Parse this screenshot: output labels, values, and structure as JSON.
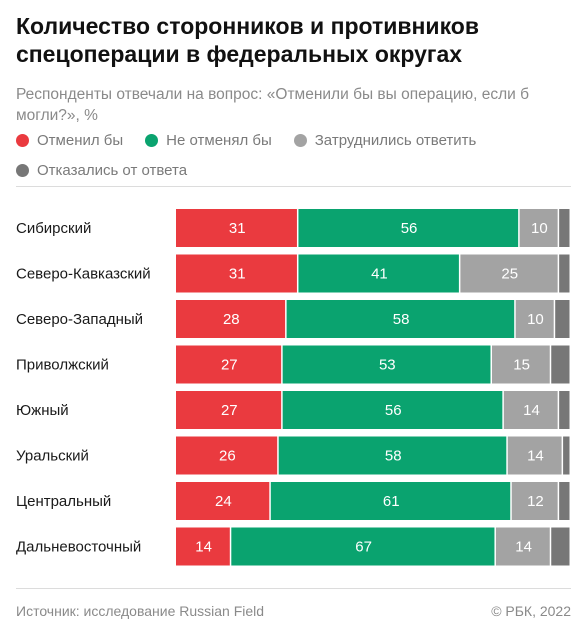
{
  "title": "Количество сторонников и противников спецоперации в федеральных округах",
  "subtitle": "Респонденты отвечали на вопрос: «Отменили бы вы операцию, если б могли?», %",
  "legend": [
    {
      "label": "Отменил бы",
      "color": "#ea3a3f"
    },
    {
      "label": "Не отменял бы",
      "color": "#0aa36f"
    },
    {
      "label": "Затруднились ответить",
      "color": "#a3a3a3"
    },
    {
      "label": "Отказались от ответа",
      "color": "#777777"
    }
  ],
  "footer": {
    "source": "Источник: исследование Russian Field",
    "copyright": "© РБК, 2022"
  },
  "chart_data": {
    "type": "bar",
    "orientation": "horizontal",
    "stacked": true,
    "unit": "%",
    "categories": [
      "Сибирский",
      "Северо-Кавказский",
      "Северо-Западный",
      "Приволжский",
      "Южный",
      "Уральский",
      "Центральный",
      "Дальневосточный"
    ],
    "series": [
      {
        "name": "Отменил бы",
        "color": "#ea3a3f",
        "values": [
          31,
          31,
          28,
          27,
          27,
          26,
          24,
          14
        ]
      },
      {
        "name": "Не отменял бы",
        "color": "#0aa36f",
        "values": [
          56,
          41,
          58,
          53,
          56,
          58,
          61,
          67
        ]
      },
      {
        "name": "Затруднились ответить",
        "color": "#a3a3a3",
        "values": [
          10,
          25,
          10,
          15,
          14,
          14,
          12,
          14
        ]
      },
      {
        "name": "Отказались от ответа",
        "color": "#777777",
        "values": [
          3,
          3,
          4,
          5,
          3,
          2,
          3,
          5
        ]
      }
    ],
    "xlim": [
      0,
      100
    ]
  }
}
